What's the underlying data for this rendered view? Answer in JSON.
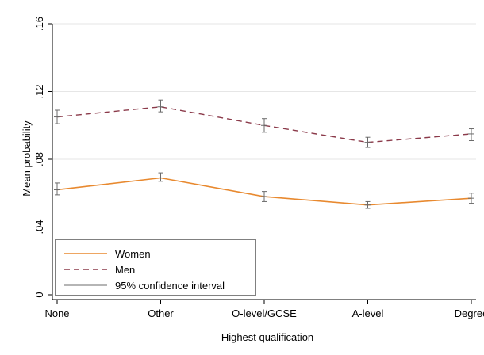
{
  "chart_data": {
    "type": "line",
    "title": "",
    "xlabel": "Highest qualification",
    "ylabel": "Mean probability",
    "categories": [
      "None",
      "Other",
      "O-level/GCSE",
      "A-level",
      "Degree"
    ],
    "y_ticks": [
      0,
      0.04,
      0.08,
      0.12,
      0.16
    ],
    "y_tick_labels": [
      "0",
      ".04",
      ".08",
      ".12",
      ".16"
    ],
    "ylim": [
      0,
      0.16
    ],
    "grid": true,
    "legend_position": "bottom-left",
    "series": [
      {
        "name": "Women",
        "color": "#e8892f",
        "dash": "solid",
        "values": [
          0.062,
          0.069,
          0.058,
          0.053,
          0.057
        ],
        "ci_low": [
          0.059,
          0.067,
          0.055,
          0.051,
          0.054
        ],
        "ci_high": [
          0.066,
          0.072,
          0.061,
          0.055,
          0.06
        ]
      },
      {
        "name": "Men",
        "color": "#8b3a4a",
        "dash": "dashed",
        "values": [
          0.105,
          0.111,
          0.1,
          0.09,
          0.095
        ],
        "ci_low": [
          0.101,
          0.108,
          0.096,
          0.087,
          0.091
        ],
        "ci_high": [
          0.109,
          0.115,
          0.104,
          0.093,
          0.098
        ]
      }
    ],
    "legend": [
      {
        "label": "Women",
        "color": "#e8892f",
        "style": "solid"
      },
      {
        "label": "Men",
        "color": "#8b3a4a",
        "style": "dashed"
      },
      {
        "label": "95% confidence interval",
        "color": "#6b6b6b",
        "style": "solid"
      }
    ],
    "ci_color": "#6b6b6b",
    "grid_color": "#e6e6e6",
    "axis_color": "#000000"
  }
}
